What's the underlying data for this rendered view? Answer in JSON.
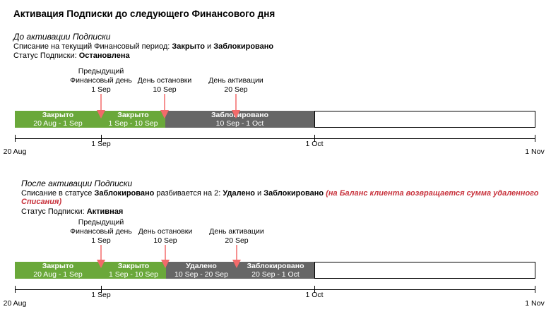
{
  "title": "Активация Подписки до следующего Финансового дня",
  "before": {
    "heading": "До активации Подписки",
    "line1_prefix": "Списание на текущий Финансовый период: ",
    "line1_closed": "Закрыто",
    "line1_and": " и ",
    "line1_blocked": "Заблокировано",
    "status_prefix": "Статус Подписки: ",
    "status_value": "Остановлена",
    "ann_prev_1": "Предыдущий",
    "ann_prev_2": "Финансовый день",
    "ann_prev_3": "1 Sep",
    "ann_stop_1": "День остановки",
    "ann_stop_2": "10 Sep",
    "ann_act_1": "День активации",
    "ann_act_2": "20 Sep",
    "segments": [
      {
        "title": "Закрыто",
        "dates": "20 Aug - 1 Sep",
        "color": "#6aa83a"
      },
      {
        "title": "Закрыто",
        "dates": "1 Sep - 10 Sep",
        "color": "#6aa83a"
      },
      {
        "title": "Заблокировано",
        "dates": "10 Sep - 1 Oct",
        "color": "#666666"
      }
    ],
    "ticks": [
      "20 Aug",
      "1 Sep",
      "1 Oct",
      "1 Nov"
    ]
  },
  "after": {
    "heading": "После активации Подписки",
    "line1_prefix": "Списание в статусе ",
    "line1_blocked": "Заблокировано",
    "line1_mid": " разбивается на 2: ",
    "line1_deleted": "Удалено",
    "line1_and": " и ",
    "line1_blocked2": "Заблокировано",
    "line1_note_a": "(на Баланс клиента возвращается сумма удаленного",
    "line1_note_b": "Списания)",
    "status_prefix": "Статус Подписки: ",
    "status_value": "Активная",
    "ann_prev_1": "Предыдущий",
    "ann_prev_2": "Финансовый день",
    "ann_prev_3": "1 Sep",
    "ann_stop_1": "День остановки",
    "ann_stop_2": "10 Sep",
    "ann_act_1": "День активации",
    "ann_act_2": "20 Sep",
    "segments": [
      {
        "title": "Закрыто",
        "dates": "20 Aug - 1 Sep",
        "color": "#6aa83a"
      },
      {
        "title": "Закрыто",
        "dates": "1 Sep - 10 Sep",
        "color": "#6aa83a"
      },
      {
        "title": "Удалено",
        "dates": "10 Sep - 20 Sep",
        "color": "#666666"
      },
      {
        "title": "Заблокировано",
        "dates": "20 Sep - 1 Oct",
        "color": "#666666"
      }
    ],
    "ticks": [
      "20 Aug",
      "1 Sep",
      "1 Oct",
      "1 Nov"
    ]
  },
  "colors": {
    "closed": "#6aa83a",
    "blocked": "#666666",
    "arrow": "#f26a6a",
    "note": "#c8323c"
  }
}
